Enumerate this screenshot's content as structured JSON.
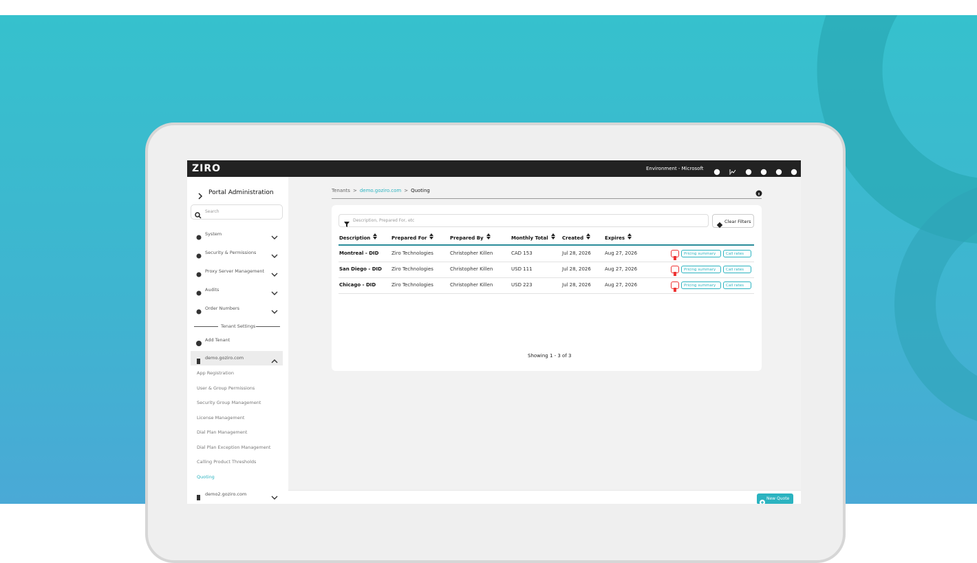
{
  "header": {
    "logo": "ZIRO",
    "environment": "Environment - Microsoft"
  },
  "sidebar": {
    "title": "Portal Administration",
    "search_placeholder": "Search",
    "menu": [
      "System",
      "Security & Permissions",
      "Proxy Server Management",
      "Audits",
      "Order Numbers"
    ],
    "section": "Tenant Settings",
    "add_tenant": "Add Tenant",
    "tenants": [
      {
        "name": "demo.goziro.com",
        "items": [
          "App Registration",
          "User & Group Permissions",
          "Security Group Management",
          "License Management",
          "Dial Plan Management",
          "Dial Plan Exception Management",
          "Calling Product Thresholds",
          "Quoting"
        ],
        "active": 7
      },
      {
        "name": "demo2.goziro.com"
      }
    ]
  },
  "breadcrumb": {
    "items": [
      "Tenants",
      "demo.goziro.com",
      "Quoting"
    ],
    "separator": ">"
  },
  "filter": {
    "placeholder": "Description, Prepared For, etc",
    "clear": "Clear Filters"
  },
  "table": {
    "columns": [
      "Description",
      "Prepared For",
      "Prepared By",
      "Monthly Total",
      "Created",
      "Expires"
    ],
    "rows": [
      [
        "Montreal - DID",
        "Ziro Technologies",
        "Christopher Killen",
        "CAD 153",
        "Jul 28, 2026",
        "Aug 27, 2026"
      ],
      [
        "San Diego - DID",
        "Ziro Technologies",
        "Christopher Killen",
        "USD 111",
        "Jul 28, 2026",
        "Aug 27, 2026"
      ],
      [
        "Chicago - DID",
        "Ziro Technologies",
        "Christopher Killen",
        "USD 223",
        "Jul 28, 2026",
        "Aug 27, 2026"
      ]
    ],
    "actions": [
      "Pricing summary",
      "Call rates"
    ]
  },
  "footer": "Showing 1 - 3 of 3",
  "new_quote": "New Quote"
}
